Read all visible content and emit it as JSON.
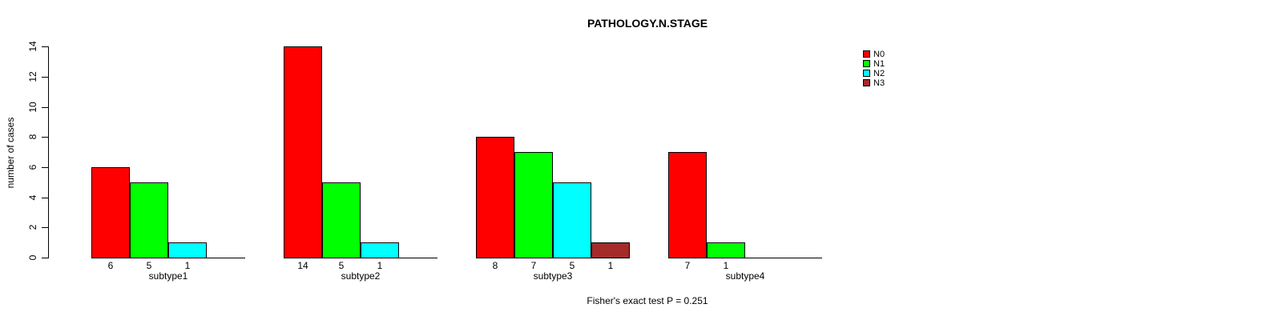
{
  "chart_data": {
    "type": "bar",
    "title": "PATHOLOGY.N.STAGE",
    "ylabel": "number of cases",
    "annotation": "Fisher's exact test P = 0.251",
    "categories": [
      "subtype1",
      "subtype2",
      "subtype3",
      "subtype4"
    ],
    "series": [
      {
        "name": "N0",
        "color": "#FF0000",
        "values": [
          6,
          14,
          8,
          7
        ]
      },
      {
        "name": "N1",
        "color": "#00FF00",
        "values": [
          5,
          5,
          7,
          1
        ]
      },
      {
        "name": "N2",
        "color": "#00FFFF",
        "values": [
          1,
          1,
          5,
          0
        ]
      },
      {
        "name": "N3",
        "color": "#A52A2A",
        "values": [
          0,
          0,
          1,
          0
        ]
      }
    ],
    "yticks": [
      0,
      2,
      4,
      6,
      8,
      10,
      12,
      14
    ],
    "ylim": [
      0,
      14
    ],
    "grid": false,
    "legend_position": "top-right",
    "bar_value_labels": "value shown below each nonzero bar"
  },
  "colors": {
    "background": "#FFFFFF",
    "axis": "#000000",
    "text": "#000000"
  }
}
